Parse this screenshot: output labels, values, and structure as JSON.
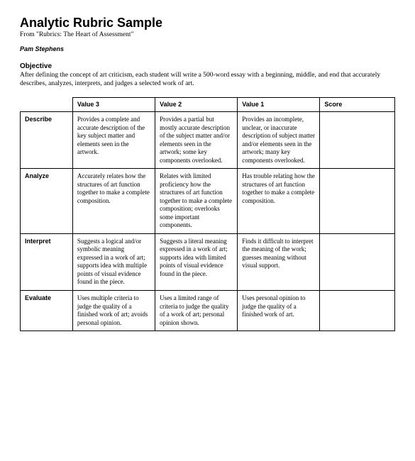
{
  "header": {
    "title": "Analytic Rubric Sample",
    "subtitle": "From \"Rubrics: The Heart of Assessment\"",
    "author": "Pam Stephens"
  },
  "objective": {
    "label": "Objective",
    "text": "After defining the concept of art criticism, each student will write a 500-word essay with a beginning, middle, and end that accurately describes, analyzes, interprets, and judges a selected work of art."
  },
  "rubric": {
    "columns": [
      "Value 3",
      "Value 2",
      "Value 1",
      "Score"
    ],
    "rows": [
      {
        "label": "Describe",
        "cells": [
          "Provides a complete and accurate description of the key subject matter and elements seen in the artwork.",
          "Provides a partial but mostly accurate description of the subject matter and/or elements seen in the artwork; some key components overlooked.",
          "Provides an incomplete, unclear, or inaccurate description of subject matter and/or elements seen in the artwork; many key components overlooked.",
          ""
        ]
      },
      {
        "label": "Analyze",
        "cells": [
          "Accurately relates how the structures of art function together to make a complete composition.",
          "Relates with limited proficiency how the structures of art function together to make a complete composition; overlooks some important components.",
          "Has trouble relating how the structures of art function together to make a complete composition.",
          ""
        ]
      },
      {
        "label": "Interpret",
        "cells": [
          "Suggests a logical and/or symbolic meaning expressed in a work of art; supports idea with multiple points of visual evidence found in the piece.",
          "Suggests a literal meaning expressed in a work of art; supports idea with limited points of visual evidence found in the piece.",
          "Finds it difficult to interpret the meaning of the work; guesses meaning without visual support.",
          ""
        ]
      },
      {
        "label": "Evaluate",
        "cells": [
          "Uses multiple criteria to judge the quality of a finished work of art; avoids personal opinion.",
          "Uses a limited range of criteria to judge the quality of a work of art; personal opinion shown.",
          "Uses personal opinion to judge the quality of a finished work of art.",
          ""
        ]
      }
    ]
  }
}
